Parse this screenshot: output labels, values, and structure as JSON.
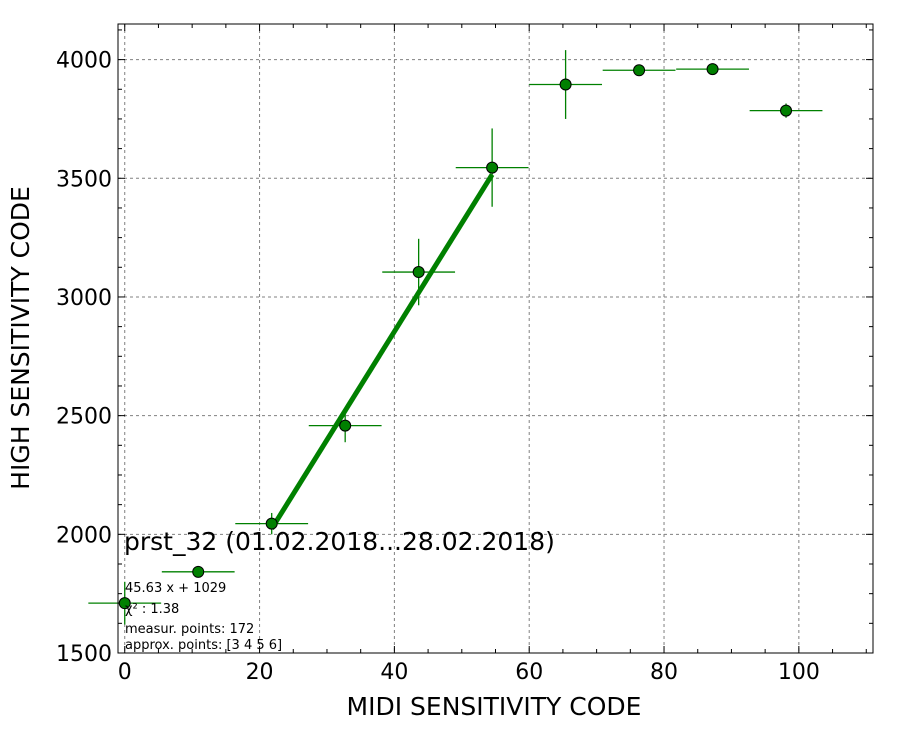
{
  "chart_data": {
    "type": "scatter",
    "title": "prst_32 (01.02.2018...28.02.2018)",
    "xlabel": "MIDI SENSITIVITY CODE",
    "ylabel": "HIGH SENSITIVITY CODE",
    "xlim": [
      -1,
      111
    ],
    "ylim": [
      1500,
      4150
    ],
    "x_ticks": [
      0,
      20,
      40,
      60,
      80,
      100
    ],
    "y_ticks": [
      1500,
      2000,
      2500,
      3000,
      3500,
      4000
    ],
    "grid": true,
    "colors": {
      "marker": "#008000",
      "fit": "#008000",
      "grid": "#808080"
    },
    "series": [
      {
        "kind": "points-with-errors",
        "points": [
          {
            "x": 0,
            "y": 1710,
            "xerr": 5.4,
            "yerr": 90
          },
          {
            "x": 10.9,
            "y": 1842,
            "xerr": 5.4,
            "yerr": 15
          },
          {
            "x": 21.8,
            "y": 2045,
            "xerr": 5.4,
            "yerr": 45
          },
          {
            "x": 32.7,
            "y": 2458,
            "xerr": 5.4,
            "yerr": 70
          },
          {
            "x": 43.6,
            "y": 3105,
            "xerr": 5.4,
            "yerr": 140
          },
          {
            "x": 54.5,
            "y": 3545,
            "xerr": 5.4,
            "yerr": 165
          },
          {
            "x": 65.4,
            "y": 3895,
            "xerr": 5.4,
            "yerr": 145
          },
          {
            "x": 76.3,
            "y": 3955,
            "xerr": 5.4,
            "yerr": 10
          },
          {
            "x": 87.2,
            "y": 3960,
            "xerr": 5.4,
            "yerr": 10
          },
          {
            "x": 98.1,
            "y": 3785,
            "xerr": 5.4,
            "yerr": 30
          }
        ]
      },
      {
        "kind": "fit-line",
        "slope": 45.63,
        "intercept": 1029,
        "x_range": [
          21.8,
          54.5
        ]
      }
    ],
    "annotations": [
      {
        "text": "45.63 x + 1029"
      },
      {
        "text": "χ² : 1.38"
      },
      {
        "text": "measur. points: 172"
      },
      {
        "text": "approx. points: [3 4 5 6]"
      }
    ]
  }
}
